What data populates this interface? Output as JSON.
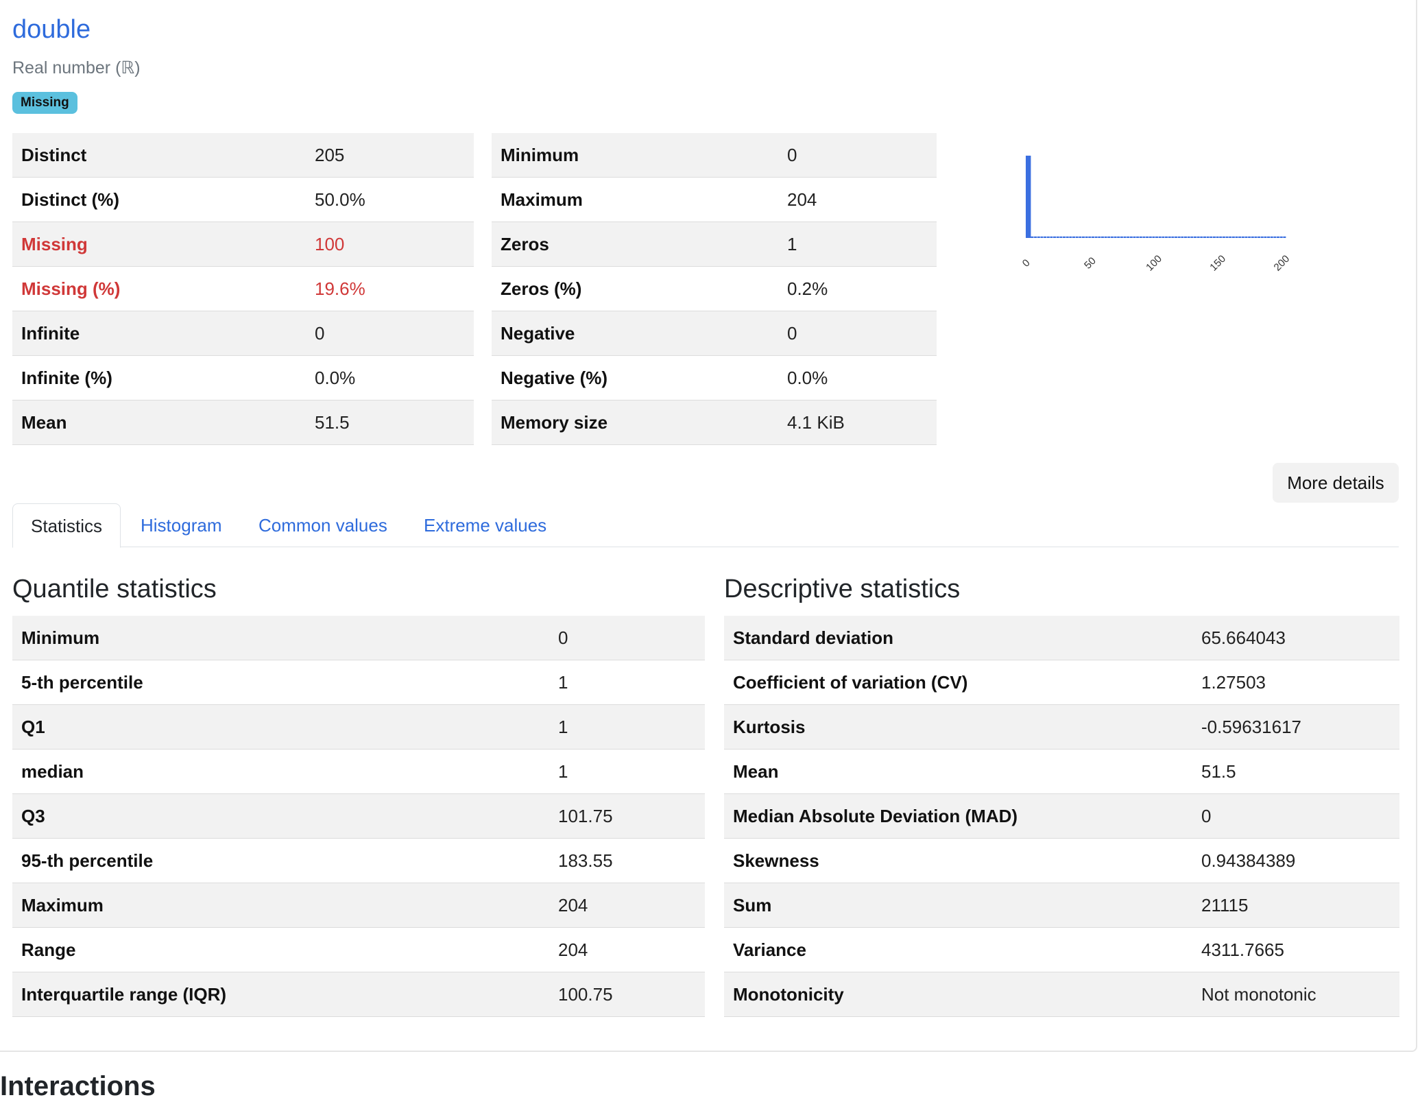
{
  "variable": {
    "name": "double",
    "type": "Real number (ℝ)",
    "badge": "Missing"
  },
  "overview_left": [
    {
      "label": "Distinct",
      "value": "205",
      "alert": false
    },
    {
      "label": "Distinct (%)",
      "value": "50.0%",
      "alert": false
    },
    {
      "label": "Missing",
      "value": "100",
      "alert": true
    },
    {
      "label": "Missing (%)",
      "value": "19.6%",
      "alert": true
    },
    {
      "label": "Infinite",
      "value": "0",
      "alert": false
    },
    {
      "label": "Infinite (%)",
      "value": "0.0%",
      "alert": false
    },
    {
      "label": "Mean",
      "value": "51.5",
      "alert": false
    }
  ],
  "overview_right": [
    {
      "label": "Minimum",
      "value": "0"
    },
    {
      "label": "Maximum",
      "value": "204"
    },
    {
      "label": "Zeros",
      "value": "1"
    },
    {
      "label": "Zeros (%)",
      "value": "0.2%"
    },
    {
      "label": "Negative",
      "value": "0"
    },
    {
      "label": "Negative (%)",
      "value": "0.0%"
    },
    {
      "label": "Memory size",
      "value": "4.1 KiB"
    }
  ],
  "chart_data": {
    "type": "bar",
    "title": "",
    "xlabel": "",
    "ylabel": "",
    "bar_color": "#3b6fe0",
    "xlim": [
      0,
      204
    ],
    "x_ticks": [
      0,
      50,
      100,
      150,
      200
    ],
    "bins": [
      {
        "x0": 0,
        "x1": 4,
        "count": 101
      },
      {
        "x0": 4,
        "x1": 204,
        "count": 1,
        "note": "remaining bins each ~1"
      }
    ],
    "peak_count": 101,
    "baseline_count": 1
  },
  "more_details_label": "More details",
  "tabs": [
    {
      "label": "Statistics",
      "active": true
    },
    {
      "label": "Histogram",
      "active": false
    },
    {
      "label": "Common values",
      "active": false
    },
    {
      "label": "Extreme values",
      "active": false
    }
  ],
  "quantile": {
    "title": "Quantile statistics",
    "rows": [
      {
        "label": "Minimum",
        "value": "0"
      },
      {
        "label": "5-th percentile",
        "value": "1"
      },
      {
        "label": "Q1",
        "value": "1"
      },
      {
        "label": "median",
        "value": "1"
      },
      {
        "label": "Q3",
        "value": "101.75"
      },
      {
        "label": "95-th percentile",
        "value": "183.55"
      },
      {
        "label": "Maximum",
        "value": "204"
      },
      {
        "label": "Range",
        "value": "204"
      },
      {
        "label": "Interquartile range (IQR)",
        "value": "100.75"
      }
    ]
  },
  "descriptive": {
    "title": "Descriptive statistics",
    "rows": [
      {
        "label": "Standard deviation",
        "value": "65.664043"
      },
      {
        "label": "Coefficient of variation (CV)",
        "value": "1.27503"
      },
      {
        "label": "Kurtosis",
        "value": "-0.59631617"
      },
      {
        "label": "Mean",
        "value": "51.5"
      },
      {
        "label": "Median Absolute Deviation (MAD)",
        "value": "0"
      },
      {
        "label": "Skewness",
        "value": "0.94384389"
      },
      {
        "label": "Sum",
        "value": "21115"
      },
      {
        "label": "Variance",
        "value": "4311.7665"
      },
      {
        "label": "Monotonicity",
        "value": "Not monotonic"
      }
    ]
  },
  "next_section_heading": "Interactions"
}
